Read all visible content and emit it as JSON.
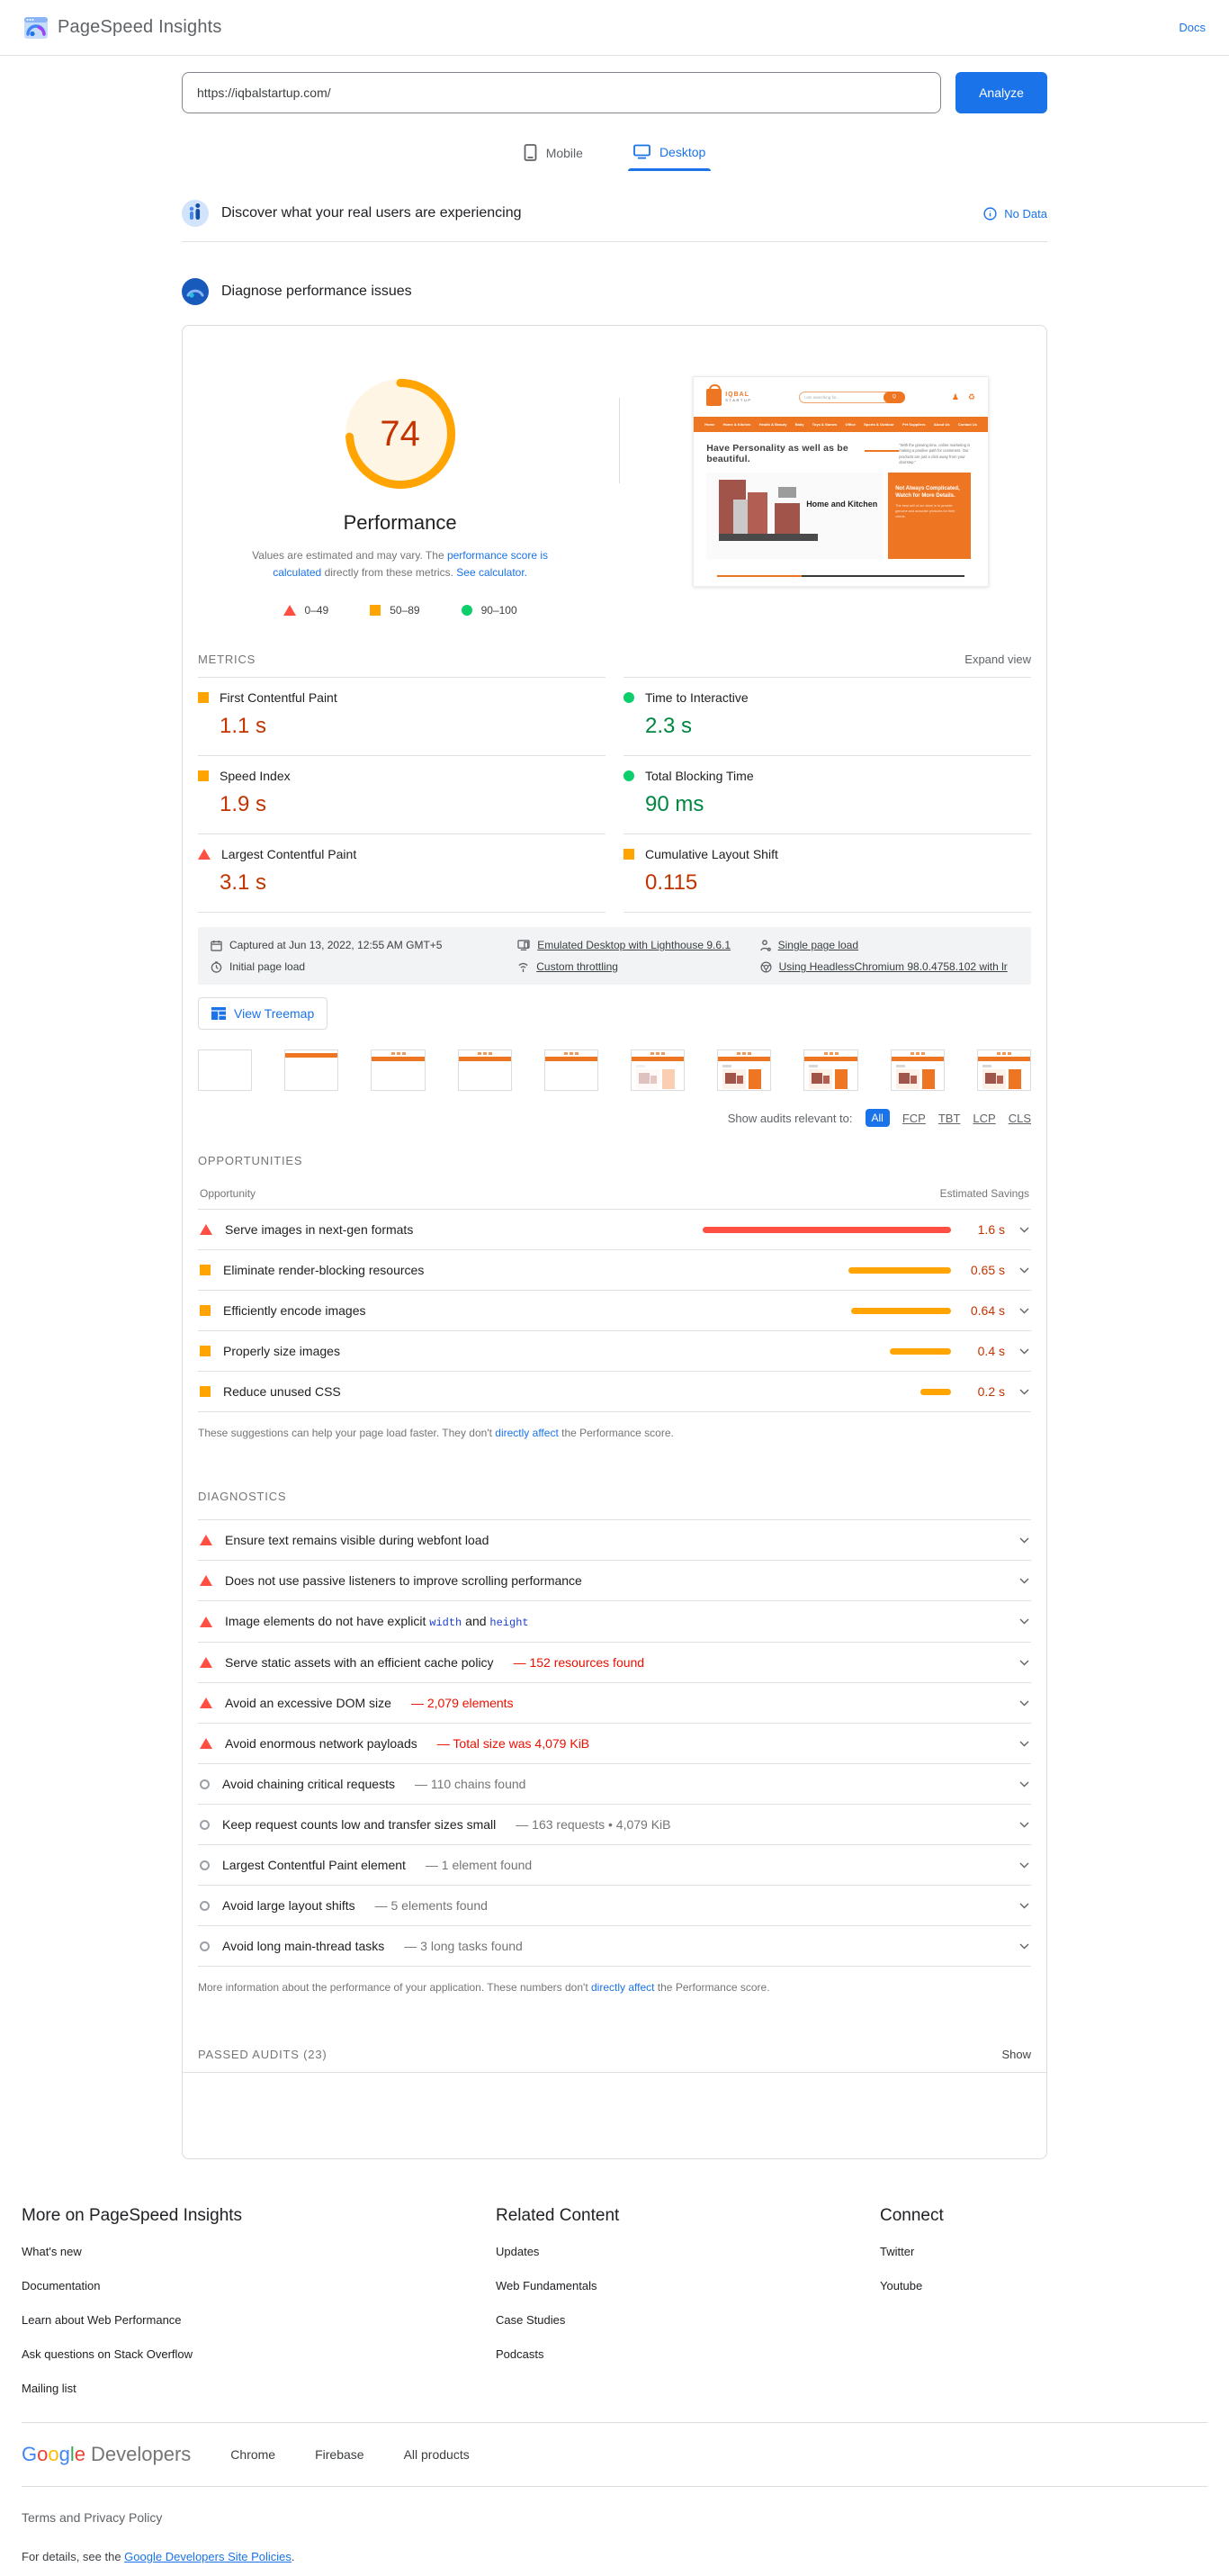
{
  "header": {
    "title": "PageSpeed Insights",
    "docs_label": "Docs"
  },
  "search": {
    "url_value": "https://iqbalstartup.com/",
    "analyze_label": "Analyze"
  },
  "tabs": {
    "mobile": "Mobile",
    "desktop": "Desktop"
  },
  "field_section": {
    "title": "Discover what your real users are experiencing",
    "no_data_label": "No Data"
  },
  "lab_section": {
    "title": "Diagnose performance issues"
  },
  "gauge": {
    "score": "74",
    "label": "Performance",
    "desc_1": "Values are estimated and may vary. The ",
    "link_1": "performance score is calculated",
    "desc_2": " directly from these metrics. ",
    "link_2": "See calculator.",
    "legend": [
      {
        "range": "0–49"
      },
      {
        "range": "50–89"
      },
      {
        "range": "90–100"
      }
    ]
  },
  "site_preview": {
    "logo_line1": "IQBAL",
    "logo_line2": "STARTUP",
    "search_text": "I am searching for...",
    "search_button": "Q",
    "nav_items": [
      "Home",
      "Home & Kitchen",
      "Health & Beauty",
      "Baby",
      "Toys & Games",
      "Office",
      "Sports & Outdoor",
      "Pet Suppliers",
      "About Us",
      "Contact Us"
    ],
    "headline": "Have Personality as well as be beautiful.",
    "quote": "\"With the growing time, online marketing is making a positive path for customers. Our products are just a click away from your doorstep.\"",
    "category_label": "Home and Kitchen",
    "promo_title": "Not Always Complicated, Watch for More Details.",
    "promo_body": "The best sell of our store is to provide genuine and accurate products for their needs."
  },
  "metrics": {
    "section_label": "METRICS",
    "expand_label": "Expand view",
    "items": [
      {
        "label": "First Contentful Paint",
        "value": "1.1 s"
      },
      {
        "label": "Time to Interactive",
        "value": "2.3 s"
      },
      {
        "label": "Speed Index",
        "value": "1.9 s"
      },
      {
        "label": "Total Blocking Time",
        "value": "90 ms"
      },
      {
        "label": "Largest Contentful Paint",
        "value": "3.1 s"
      },
      {
        "label": "Cumulative Layout Shift",
        "value": "0.115"
      }
    ]
  },
  "capture_info": {
    "items": [
      {
        "text": "Captured at Jun 13, 2022, 12:55 AM GMT+5"
      },
      {
        "text": "Emulated Desktop with Lighthouse 9.6.1"
      },
      {
        "text": "Single page load"
      },
      {
        "text": "Initial page load"
      },
      {
        "text": "Custom throttling"
      },
      {
        "text": "Using HeadlessChromium 98.0.4758.102 with lr"
      }
    ]
  },
  "treemap": {
    "label": "View Treemap"
  },
  "filmstrip": {
    "frames": [
      {
        "stage": "blank"
      },
      {
        "stage": "bar"
      },
      {
        "stage": "header"
      },
      {
        "stage": "header"
      },
      {
        "stage": "header"
      },
      {
        "stage": "faded"
      },
      {
        "stage": "full"
      },
      {
        "stage": "full"
      },
      {
        "stage": "full"
      },
      {
        "stage": "full"
      }
    ]
  },
  "audit_filter": {
    "label": "Show audits relevant to:",
    "all": "All",
    "chips": [
      "FCP",
      "TBT",
      "LCP",
      "CLS"
    ]
  },
  "opportunities": {
    "section_label": "OPPORTUNITIES",
    "col_left": "Opportunity",
    "col_right": "Estimated Savings",
    "items": [
      {
        "label": "Serve images in next-gen formats",
        "savings": "1.6 s",
        "bar_percent": 97
      },
      {
        "label": "Eliminate render-blocking resources",
        "savings": "0.65 s",
        "bar_percent": 40
      },
      {
        "label": "Efficiently encode images",
        "savings": "0.64 s",
        "bar_percent": 39
      },
      {
        "label": "Properly size images",
        "savings": "0.4 s",
        "bar_percent": 24
      },
      {
        "label": "Reduce unused CSS",
        "savings": "0.2 s",
        "bar_percent": 12
      }
    ],
    "footnote_1": "These suggestions can help your page load faster. They don't ",
    "footnote_link": "directly affect",
    "footnote_2": " the Performance score."
  },
  "diagnostics": {
    "section_label": "DIAGNOSTICS",
    "items": [
      {
        "label": "Ensure text remains visible during webfont load",
        "annotation": ""
      },
      {
        "label": "Does not use passive listeners to improve scrolling performance",
        "annotation": ""
      },
      {
        "label": "Image elements do not have explicit ",
        "code_1": "width",
        "mid": " and ",
        "code_2": "height"
      },
      {
        "label": "Serve static assets with an efficient cache policy",
        "annotation": "— 152 resources found"
      },
      {
        "label": "Avoid an excessive DOM size",
        "annotation": "— 2,079 elements"
      },
      {
        "label": "Avoid enormous network payloads",
        "annotation": "— Total size was 4,079 KiB"
      },
      {
        "label": "Avoid chaining critical requests",
        "annotation": "— 110 chains found"
      },
      {
        "label": "Keep request counts low and transfer sizes small",
        "annotation": "— 163 requests • 4,079 KiB"
      },
      {
        "label": "Largest Contentful Paint element",
        "annotation": "— 1 element found"
      },
      {
        "label": "Avoid large layout shifts",
        "annotation": "— 5 elements found"
      },
      {
        "label": "Avoid long main-thread tasks",
        "annotation": "— 3 long tasks found"
      }
    ],
    "footnote_1": "More information about the performance of your application. These numbers don't ",
    "footnote_link": "directly affect",
    "footnote_2": " the Performance score."
  },
  "passed_audits": {
    "label": "PASSED AUDITS (23)",
    "show_label": "Show"
  },
  "footer": {
    "columns": [
      {
        "title": "More on PageSpeed Insights",
        "links": [
          "What's new",
          "Documentation",
          "Learn about Web Performance",
          "Ask questions on Stack Overflow",
          "Mailing list"
        ]
      },
      {
        "title": "Related Content",
        "links": [
          "Updates",
          "Web Fundamentals",
          "Case Studies",
          "Podcasts"
        ]
      },
      {
        "title": "Connect",
        "links": [
          "Twitter",
          "Youtube"
        ]
      }
    ],
    "brand_google": "Google",
    "brand_developers": "Developers",
    "brand_links": [
      "Chrome",
      "Firebase",
      "All products"
    ],
    "terms": "Terms and Privacy Policy",
    "details_1": "For details, see the ",
    "details_link": "Google Developers Site Policies",
    "details_2": "."
  }
}
